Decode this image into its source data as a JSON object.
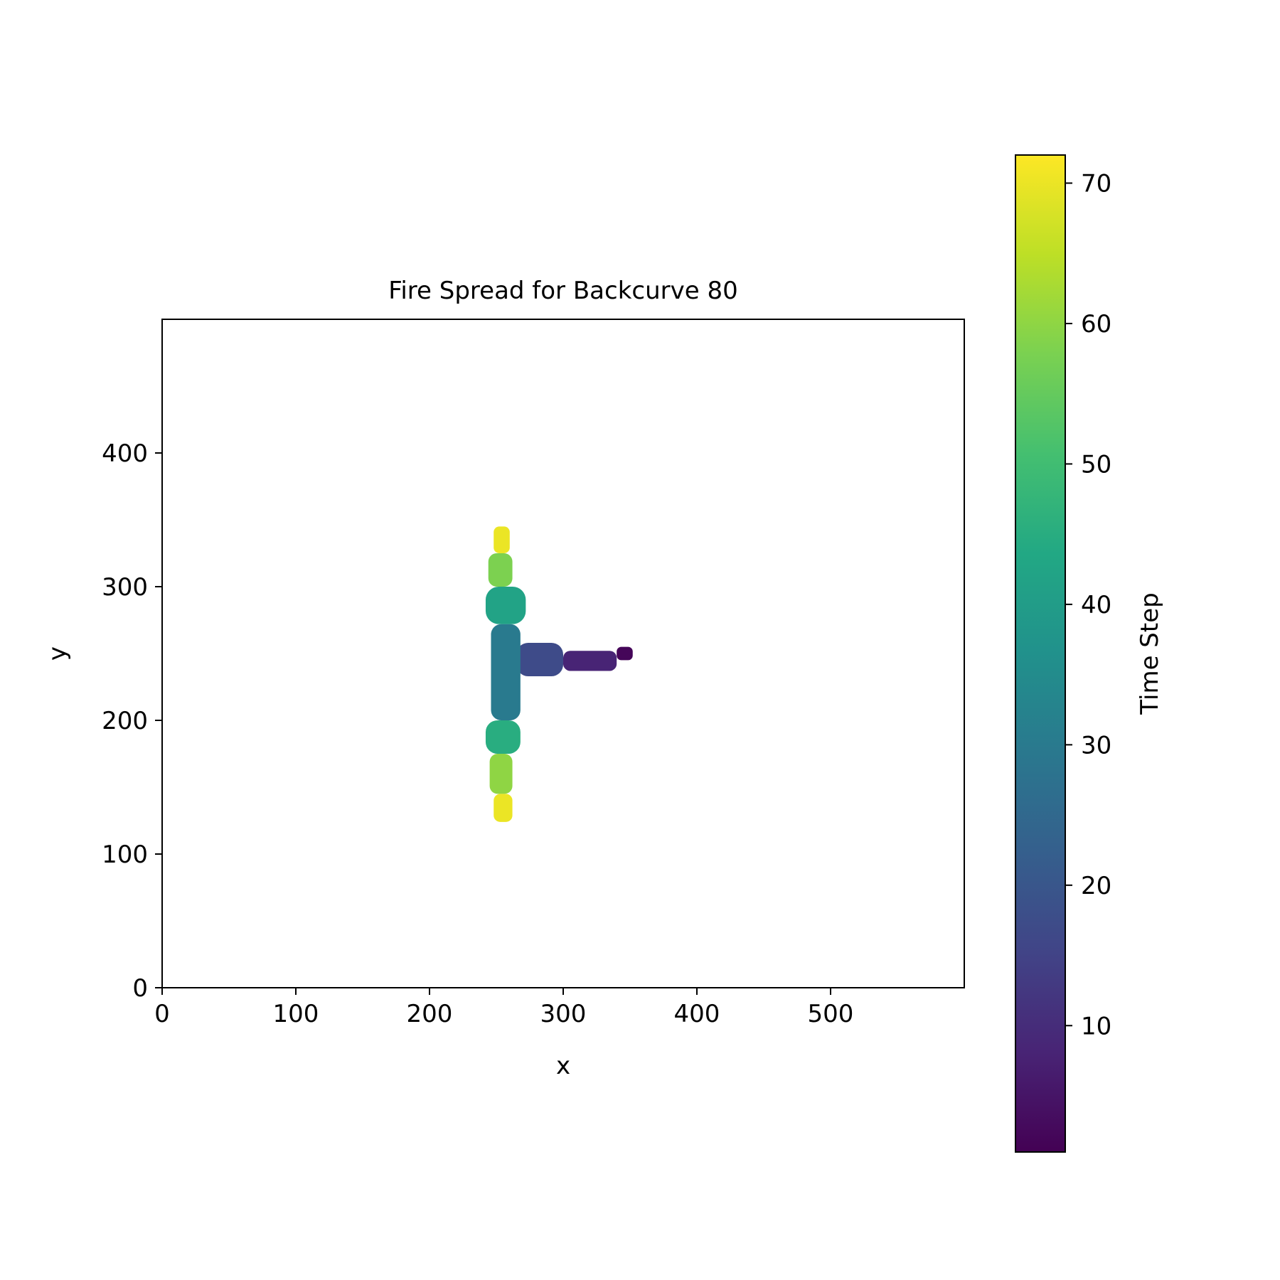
{
  "chart_data": {
    "type": "heatmap",
    "title": "Fire Spread for Backcurve 80",
    "xlabel": "x",
    "ylabel": "y",
    "xlim": [
      0,
      600
    ],
    "ylim": [
      0,
      500
    ],
    "xticks": [
      "0",
      "100",
      "200",
      "300",
      "400",
      "500"
    ],
    "yticks": [
      "0",
      "100",
      "200",
      "300",
      "400"
    ],
    "colorbar": {
      "label": "Time Step",
      "colormap": "viridis",
      "range": [
        1,
        72
      ],
      "ticks": [
        "10",
        "20",
        "30",
        "40",
        "50",
        "60",
        "70"
      ]
    },
    "burn_regions": [
      {
        "x_range": [
          340,
          352
        ],
        "y_range": [
          245,
          255
        ],
        "time_step": 2
      },
      {
        "x_range": [
          300,
          340
        ],
        "y_range": [
          237,
          252
        ],
        "time_step": 8
      },
      {
        "x_range": [
          265,
          300
        ],
        "y_range": [
          233,
          258
        ],
        "time_step": 17
      },
      {
        "x_range": [
          246,
          268
        ],
        "y_range": [
          200,
          272
        ],
        "time_step": 30
      },
      {
        "x_range": [
          242,
          272
        ],
        "y_range": [
          272,
          300
        ],
        "time_step": 42
      },
      {
        "x_range": [
          242,
          268
        ],
        "y_range": [
          175,
          200
        ],
        "time_step": 45
      },
      {
        "x_range": [
          244,
          262
        ],
        "y_range": [
          300,
          325
        ],
        "time_step": 58
      },
      {
        "x_range": [
          245,
          262
        ],
        "y_range": [
          145,
          175
        ],
        "time_step": 60
      },
      {
        "x_range": [
          248,
          260
        ],
        "y_range": [
          325,
          345
        ],
        "time_step": 70
      },
      {
        "x_range": [
          248,
          262
        ],
        "y_range": [
          124,
          145
        ],
        "time_step": 70
      }
    ]
  }
}
